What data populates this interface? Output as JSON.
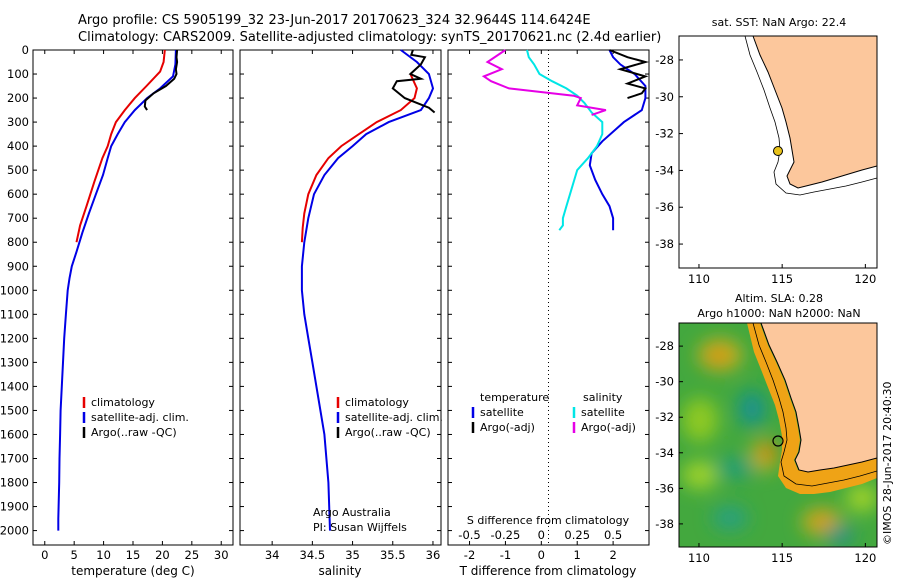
{
  "header": {
    "line1": "Argo profile: CS 5905199_32 23-Jun-2017 20170623_324 32.9644S 114.6424E",
    "line2": "Climatology: CARS2009. Satellite-adjusted climatology: synTS_20170621.nc (2.4d earlier)"
  },
  "depth_ticks": [
    0,
    100,
    200,
    300,
    400,
    500,
    600,
    700,
    800,
    900,
    1000,
    1100,
    1200,
    1300,
    1400,
    1500,
    1600,
    1700,
    1800,
    1900,
    2000
  ],
  "chart_data": [
    {
      "type": "line",
      "name": "temperature",
      "xlabel": "temperature (deg C)",
      "xlim": [
        -2,
        32
      ],
      "ylim": [
        2060,
        0
      ],
      "xticks": [
        0,
        5,
        10,
        15,
        20,
        25,
        30
      ],
      "legend": [
        "climatology",
        "satellite-adj. clim.",
        "Argo(..raw -QC)"
      ],
      "series": [
        {
          "name": "climatology",
          "color": "#e60000",
          "x": [
            20.4,
            20.2,
            19.6,
            17.3,
            15.3,
            13.6,
            12.1,
            11.3,
            10.7,
            9.8,
            8.4,
            7.1,
            6.0,
            5.4
          ],
          "y": [
            0,
            50,
            90,
            150,
            200,
            250,
            300,
            350,
            400,
            450,
            550,
            650,
            730,
            800
          ]
        },
        {
          "name": "satellite-adj. clim.",
          "color": "#0000e6",
          "x": [
            22.3,
            22.2,
            21.8,
            19.6,
            17.4,
            15.3,
            13.6,
            12.4,
            11.3,
            10.7,
            9.9,
            8.7,
            7.5,
            6.4,
            5.4,
            4.6,
            4.2,
            3.9,
            3.6,
            3.3,
            3.1,
            2.9,
            2.7,
            2.6,
            2.5,
            2.45,
            2.4,
            2.35,
            2.3,
            2.3
          ],
          "y": [
            0,
            60,
            110,
            160,
            200,
            250,
            300,
            350,
            400,
            450,
            520,
            600,
            680,
            760,
            840,
            900,
            950,
            1000,
            1100,
            1200,
            1300,
            1400,
            1500,
            1600,
            1700,
            1800,
            1850,
            1900,
            1950,
            2000
          ]
        },
        {
          "name": "Argo(..raw -QC)",
          "color": "#000000",
          "x": [
            22.5,
            22.4,
            22.5,
            22.3,
            22.4,
            22.0,
            20.6,
            18.5,
            17.1,
            17.0,
            17.4
          ],
          "y": [
            0,
            30,
            50,
            80,
            100,
            120,
            150,
            180,
            210,
            235,
            250
          ]
        }
      ]
    },
    {
      "type": "line",
      "name": "salinity",
      "xlabel": "salinity",
      "xlim": [
        33.6,
        36.1
      ],
      "ylim": [
        2060,
        0
      ],
      "xticks": [
        34,
        34.5,
        35,
        35.5,
        36
      ],
      "legend": [
        "climatology",
        "satellite-adj. clim.",
        "Argo(..raw -QC)"
      ],
      "annotation": [
        "Argo Australia",
        "PI: Susan Wijffels"
      ],
      "series": [
        {
          "name": "climatology",
          "color": "#e60000",
          "x": [
            35.72,
            35.8,
            35.77,
            35.6,
            35.3,
            35.08,
            34.86,
            34.7,
            34.55,
            34.45,
            34.4,
            34.38,
            34.37
          ],
          "y": [
            100,
            160,
            200,
            250,
            300,
            350,
            400,
            450,
            520,
            600,
            680,
            740,
            800
          ]
        },
        {
          "name": "satellite-adj. clim.",
          "color": "#0000e6",
          "x": [
            35.6,
            35.8,
            35.95,
            36.0,
            35.95,
            35.85,
            35.45,
            35.17,
            35.0,
            34.82,
            34.65,
            34.52,
            34.45,
            34.4,
            34.37,
            34.37,
            34.4,
            34.45,
            34.5,
            34.55,
            34.6,
            34.65,
            34.7,
            34.72
          ],
          "y": [
            0,
            50,
            100,
            160,
            200,
            250,
            300,
            350,
            400,
            450,
            520,
            600,
            700,
            800,
            900,
            1000,
            1100,
            1200,
            1300,
            1400,
            1500,
            1600,
            1800,
            2000
          ]
        },
        {
          "name": "Argo(..raw -QC)",
          "color": "#000000",
          "x": [
            35.75,
            35.73,
            35.9,
            35.85,
            35.72,
            35.85,
            35.55,
            35.5,
            35.65,
            35.8,
            35.95,
            36.02
          ],
          "y": [
            0,
            20,
            30,
            60,
            100,
            120,
            130,
            160,
            200,
            220,
            240,
            260
          ]
        }
      ]
    },
    {
      "type": "line",
      "name": "difference",
      "xlabel": "T difference from climatology",
      "xlabel2": "S difference from climatology",
      "xlim": [
        -2.6,
        3.0
      ],
      "ylim": [
        2060,
        0
      ],
      "xticks": [
        "-2",
        "-1",
        "0",
        "1",
        "2"
      ],
      "xticks2": [
        "-0.5",
        "-0.25",
        "0",
        "0.25",
        "0.5"
      ],
      "legend_title_t": "temperature",
      "legend_title_s": "salinity",
      "legend": [
        "satellite",
        "Argo(-adj)",
        "satellite",
        "Argo(-adj)"
      ],
      "series": [
        {
          "name": "T satellite",
          "color": "#0000e6",
          "x": [
            1.9,
            2.0,
            2.2,
            2.6,
            2.9,
            2.9,
            2.8,
            2.3,
            1.7,
            1.4,
            1.35,
            1.5,
            1.7,
            1.9,
            2.0,
            2.0,
            2.0
          ],
          "y": [
            0,
            30,
            60,
            100,
            150,
            200,
            250,
            300,
            380,
            430,
            480,
            540,
            600,
            650,
            700,
            730,
            750
          ]
        },
        {
          "name": "T Argo(-adj)",
          "color": "#000000",
          "x": [
            1.9,
            2.4,
            2.9,
            2.2,
            2.9,
            2.4,
            2.9,
            2.8,
            2.4
          ],
          "y": [
            0,
            30,
            50,
            80,
            110,
            140,
            160,
            180,
            200
          ]
        },
        {
          "name": "S satellite",
          "color": "#00e6e6",
          "x": [
            -0.4,
            -0.35,
            -0.2,
            -0.05,
            0.3,
            0.7,
            1.0,
            1.2,
            1.4,
            1.7,
            1.7,
            1.55,
            1.3,
            1.0,
            0.8,
            0.7,
            0.6,
            0.6,
            0.5
          ],
          "y": [
            0,
            30,
            60,
            100,
            130,
            160,
            190,
            220,
            260,
            300,
            350,
            400,
            450,
            500,
            600,
            650,
            700,
            730,
            750
          ]
        },
        {
          "name": "S Argo(-adj)",
          "color": "#e600e6",
          "x": [
            -1.0,
            -1.5,
            -1.1,
            -1.6,
            -1.4,
            -0.9,
            0.9,
            1.1,
            1.0,
            1.8,
            1.4
          ],
          "y": [
            0,
            50,
            80,
            110,
            130,
            160,
            190,
            200,
            230,
            250,
            270
          ]
        }
      ]
    },
    {
      "type": "line",
      "name": "map-sst",
      "title": "sat. SST: NaN Argo: 22.4",
      "xlim": [
        108.8,
        120.7
      ],
      "ylim": [
        -39.3,
        -26.7
      ],
      "xticks": [
        110,
        115,
        120
      ],
      "yticks": [
        -28,
        -30,
        -32,
        -34,
        -36,
        -38
      ],
      "series": [
        {
          "name": "Argo",
          "x": [
            114.64
          ],
          "y": [
            -32.96
          ]
        }
      ]
    },
    {
      "type": "heatmap",
      "name": "map-sla",
      "title1": "Altim. SLA: 0.28",
      "title2": "Argo h1000: NaN h2000: NaN",
      "xlim": [
        108.8,
        120.7
      ],
      "ylim": [
        -39.3,
        -26.7
      ],
      "xticks": [
        110,
        115,
        120
      ],
      "yticks": [
        -28,
        -30,
        -32,
        -34,
        -36,
        -38
      ],
      "series": [
        {
          "name": "Argo",
          "x": [
            114.64
          ],
          "y": [
            -32.96
          ]
        }
      ]
    }
  ],
  "footer": "©IMOS 28-Jun-2017 20:40:30",
  "colors": {
    "land": "#fcc79c",
    "ocean_green": "#3aa83c",
    "accent_yellow": "#e8c21a"
  }
}
